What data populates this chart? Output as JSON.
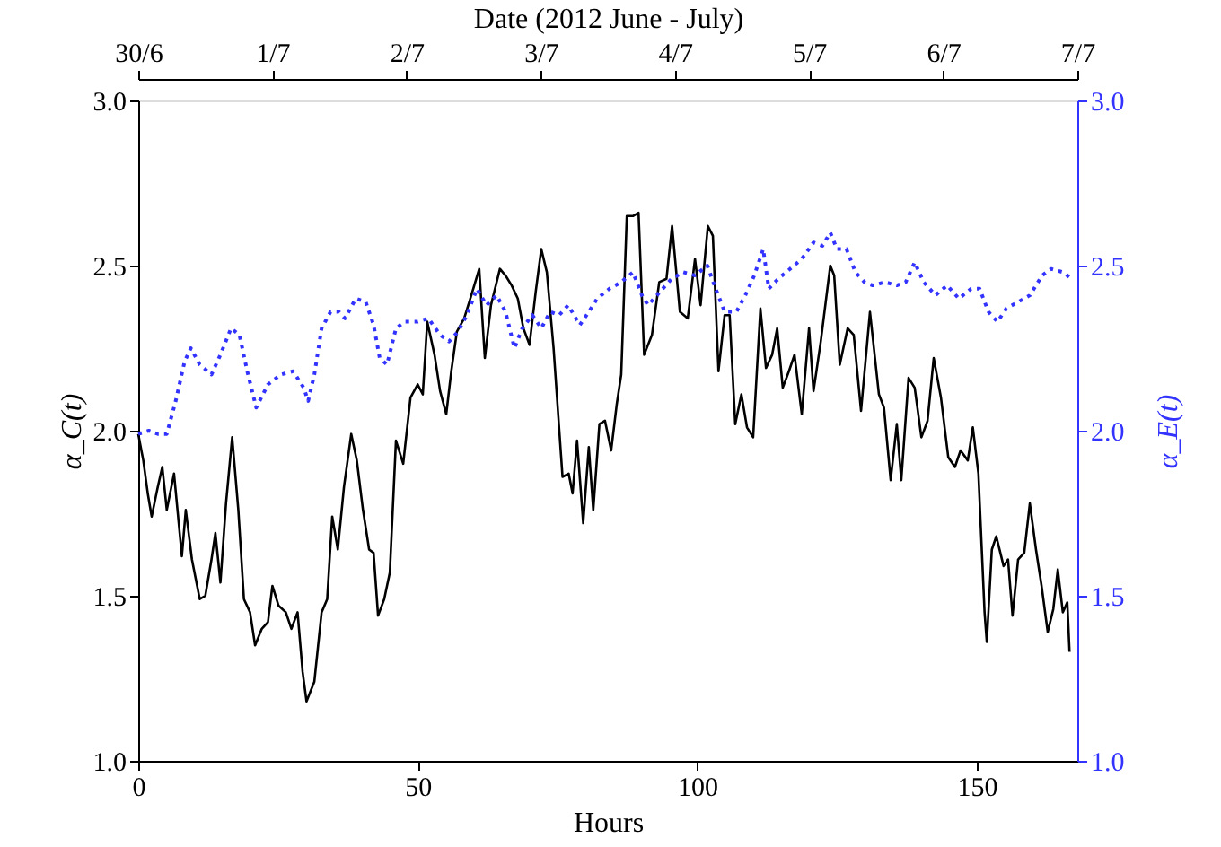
{
  "chart_data": {
    "type": "line",
    "xlabel": "Hours",
    "ylabel": "α_C(t)",
    "y2label": "α_E(t)",
    "x2label": "Date (2012 June - July)",
    "xlim": [
      0,
      168
    ],
    "xticks": [
      0,
      50,
      100,
      150
    ],
    "x2lim": [
      "2012-06-30",
      "2012-07-07"
    ],
    "x2ticks": [
      {
        "value": "2012-06-30",
        "label": "30/6"
      },
      {
        "value": "2012-07-01",
        "label": "1/7"
      },
      {
        "value": "2012-07-02",
        "label": "2/7"
      },
      {
        "value": "2012-07-03",
        "label": "3/7"
      },
      {
        "value": "2012-07-04",
        "label": "4/7"
      },
      {
        "value": "2012-07-05",
        "label": "5/7"
      },
      {
        "value": "2012-07-06",
        "label": "6/7"
      },
      {
        "value": "2012-07-07",
        "label": "7/7"
      }
    ],
    "ylim": [
      1.0,
      3.0
    ],
    "yticks": [
      {
        "value": 1,
        "label": "1.0"
      },
      1.5,
      {
        "value": 2,
        "label": "2.0"
      },
      2.5,
      {
        "value": 3,
        "label": "3.0"
      }
    ],
    "y2lim": [
      1.0,
      3.0
    ],
    "y2ticks": [
      {
        "value": 1,
        "label": "1.0"
      },
      1.5,
      {
        "value": 2,
        "label": "2.0"
      },
      2.5,
      {
        "value": 3,
        "label": "3.0"
      }
    ],
    "grid": false,
    "series": [
      {
        "color": "#000000",
        "line_style": "solid",
        "x": [
          0,
          0.9,
          1.7,
          2.4,
          3.5,
          4.3,
          5.1,
          6.4,
          7.8,
          8.5,
          9.6,
          11,
          12,
          13.1,
          13.8,
          14.7,
          15.7,
          16.8,
          17.9,
          18.9,
          20,
          20.9,
          22.1,
          23.2,
          24,
          25.1,
          26.4,
          27.4,
          28.5,
          29.4,
          30.1,
          31.5,
          32.8,
          33.8,
          34.7,
          35.7,
          36.8,
          38.1,
          39.1,
          40.2,
          41.3,
          42.1,
          42.9,
          44,
          45,
          46.1,
          47.4,
          48.7,
          50,
          50.9,
          51.7,
          53,
          54,
          55.1,
          56,
          57,
          58.3,
          59.4,
          61,
          62,
          63.1,
          64.7,
          65.7,
          66.8,
          67.9,
          68.9,
          70,
          71.1,
          72.1,
          73.1,
          74.3,
          75.9,
          77,
          77.7,
          78.5,
          79.6,
          80.6,
          81.4,
          82.5,
          83.5,
          84.6,
          85.6,
          86.4,
          87.4,
          88.5,
          89.5,
          90.5,
          91.9,
          93.2,
          94.5,
          95.5,
          96.9,
          98.3,
          99.6,
          100.6,
          101.9,
          102.8,
          103.8,
          104.9,
          105.8,
          106.8,
          107.9,
          108.9,
          110,
          111.3,
          112.3,
          113.4,
          114.3,
          115.3,
          116.4,
          117.4,
          118.7,
          120,
          120.8,
          122.1,
          123.8,
          124.5,
          125.5,
          126.9,
          128,
          129.3,
          130.9,
          132.5,
          133.4,
          134.6,
          135.7,
          136.5,
          137.8,
          138.9,
          140.1,
          141.2,
          142.3,
          143.6,
          144.9,
          146.1,
          147.1,
          148.4,
          149.3,
          150.3,
          151.4,
          151.8,
          152.7,
          153.5,
          154.8,
          155.6,
          156.4,
          157.4,
          158.5,
          159.5,
          160.6,
          161.6,
          162.7,
          163.7,
          164.5,
          165.4,
          166.2,
          166.6
        ],
        "values": [
          1.99,
          1.91,
          1.81,
          1.74,
          1.83,
          1.89,
          1.76,
          1.87,
          1.62,
          1.76,
          1.61,
          1.49,
          1.5,
          1.61,
          1.69,
          1.54,
          1.78,
          1.98,
          1.76,
          1.49,
          1.45,
          1.35,
          1.4,
          1.42,
          1.53,
          1.47,
          1.45,
          1.4,
          1.45,
          1.27,
          1.18,
          1.24,
          1.45,
          1.49,
          1.74,
          1.64,
          1.83,
          1.99,
          1.91,
          1.76,
          1.64,
          1.63,
          1.44,
          1.49,
          1.57,
          1.97,
          1.9,
          2.1,
          2.14,
          2.11,
          2.33,
          2.23,
          2.12,
          2.05,
          2.18,
          2.3,
          2.34,
          2.4,
          2.49,
          2.22,
          2.38,
          2.49,
          2.47,
          2.44,
          2.4,
          2.31,
          2.26,
          2.42,
          2.55,
          2.48,
          2.25,
          1.86,
          1.87,
          1.81,
          1.97,
          1.72,
          1.95,
          1.76,
          2.02,
          2.03,
          1.94,
          2.08,
          2.17,
          2.65,
          2.65,
          2.66,
          2.23,
          2.29,
          2.45,
          2.46,
          2.62,
          2.36,
          2.34,
          2.52,
          2.38,
          2.62,
          2.59,
          2.18,
          2.35,
          2.35,
          2.02,
          2.11,
          2.01,
          1.98,
          2.37,
          2.19,
          2.23,
          2.31,
          2.13,
          2.18,
          2.23,
          2.05,
          2.31,
          2.12,
          2.27,
          2.5,
          2.47,
          2.2,
          2.31,
          2.29,
          2.06,
          2.36,
          2.11,
          2.07,
          1.85,
          2.02,
          1.85,
          2.16,
          2.13,
          1.98,
          2.03,
          2.22,
          2.1,
          1.92,
          1.89,
          1.94,
          1.91,
          2.01,
          1.87,
          1.45,
          1.36,
          1.64,
          1.68,
          1.59,
          1.61,
          1.44,
          1.61,
          1.63,
          1.78,
          1.64,
          1.53,
          1.39,
          1.46,
          1.58,
          1.45,
          1.48,
          1.33
        ]
      },
      {
        "color": "#3333ff",
        "axis": "y2",
        "line_style": "dotted",
        "x": [
          0,
          1.9,
          3.5,
          5.1,
          6.7,
          8.3,
          9.4,
          11,
          13.1,
          14.7,
          16.6,
          18.1,
          19.5,
          21.1,
          23.2,
          25.5,
          27.7,
          29.6,
          30.4,
          31.5,
          32.8,
          34.4,
          35.9,
          37,
          38.9,
          40.7,
          42.1,
          43.2,
          44.5,
          46.1,
          47.7,
          50,
          51.9,
          54,
          55.6,
          57.2,
          58.8,
          60.6,
          62.3,
          64.1,
          65.7,
          67.3,
          68.7,
          70.5,
          72.1,
          73.7,
          75.3,
          76.9,
          79,
          80.6,
          82.1,
          84.3,
          86.4,
          88.5,
          90.1,
          91.2,
          93.3,
          95.4,
          97.5,
          99.6,
          101.8,
          103.3,
          104.9,
          107,
          108.6,
          110.2,
          111.8,
          112.8,
          114.5,
          116.6,
          118.7,
          120.8,
          122.4,
          123.8,
          125,
          126.7,
          128.3,
          129.9,
          131.4,
          133.6,
          135.7,
          137.3,
          138.9,
          140.5,
          142.6,
          144.7,
          146.8,
          149,
          150.5,
          152.1,
          153.7,
          155.3,
          157.4,
          159.5,
          161.7,
          163.3,
          165.4,
          167
        ],
        "values": [
          1.99,
          2.0,
          1.99,
          1.99,
          2.09,
          2.21,
          2.25,
          2.2,
          2.17,
          2.23,
          2.31,
          2.29,
          2.18,
          2.07,
          2.14,
          2.17,
          2.18,
          2.13,
          2.09,
          2.17,
          2.31,
          2.36,
          2.36,
          2.34,
          2.4,
          2.39,
          2.32,
          2.22,
          2.2,
          2.31,
          2.33,
          2.33,
          2.34,
          2.29,
          2.27,
          2.3,
          2.35,
          2.43,
          2.38,
          2.41,
          2.36,
          2.25,
          2.31,
          2.35,
          2.31,
          2.36,
          2.35,
          2.38,
          2.32,
          2.36,
          2.4,
          2.43,
          2.45,
          2.48,
          2.41,
          2.38,
          2.42,
          2.46,
          2.48,
          2.47,
          2.5,
          2.43,
          2.36,
          2.36,
          2.41,
          2.47,
          2.55,
          2.43,
          2.46,
          2.49,
          2.52,
          2.57,
          2.56,
          2.6,
          2.55,
          2.55,
          2.48,
          2.45,
          2.44,
          2.45,
          2.44,
          2.45,
          2.51,
          2.45,
          2.41,
          2.44,
          2.4,
          2.43,
          2.43,
          2.36,
          2.33,
          2.37,
          2.39,
          2.41,
          2.47,
          2.49,
          2.48,
          2.46
        ]
      }
    ]
  }
}
